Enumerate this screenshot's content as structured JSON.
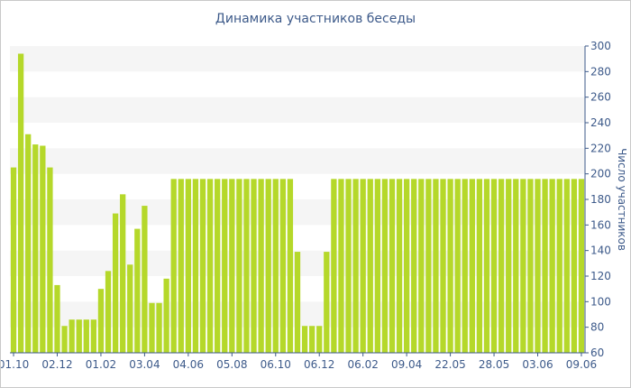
{
  "chart_data": {
    "type": "bar",
    "title": "Динамика участников беседы",
    "ylabel": "Число участников",
    "xlabel": "",
    "ylim": [
      60,
      300
    ],
    "yticks": [
      60,
      80,
      100,
      120,
      140,
      160,
      180,
      200,
      220,
      240,
      260,
      280,
      300
    ],
    "y_axis_position": "right",
    "grid": "alternating horizontal bands",
    "bar_color": "#b5d82a",
    "band_color": "#f5f5f5",
    "axis_text_color": "#3d5a8a",
    "x_tick_labels": [
      "01.10",
      "02.12",
      "01.02",
      "03.04",
      "04.06",
      "05.08",
      "06.10",
      "06.12",
      "06.02",
      "09.04",
      "22.05",
      "28.05",
      "03.06",
      "09.06"
    ],
    "x_tick_bar_index": [
      0,
      6,
      12,
      18,
      24,
      30,
      36,
      42,
      48,
      54,
      60,
      66,
      72,
      78
    ],
    "values": [
      205,
      294,
      231,
      223,
      222,
      205,
      113,
      81,
      86,
      86,
      86,
      86,
      110,
      124,
      169,
      184,
      129,
      157,
      175,
      99,
      99,
      118,
      196,
      196,
      196,
      196,
      196,
      196,
      196,
      196,
      196,
      196,
      196,
      196,
      196,
      196,
      196,
      196,
      196,
      139,
      81,
      81,
      81,
      139,
      196,
      196,
      196,
      196,
      196,
      196,
      196,
      196,
      196,
      196,
      196,
      196,
      196,
      196,
      196,
      196,
      196,
      196,
      196,
      196,
      196,
      196,
      196,
      196,
      196,
      196,
      196,
      196,
      196,
      196,
      196,
      196,
      196,
      196,
      196
    ]
  }
}
